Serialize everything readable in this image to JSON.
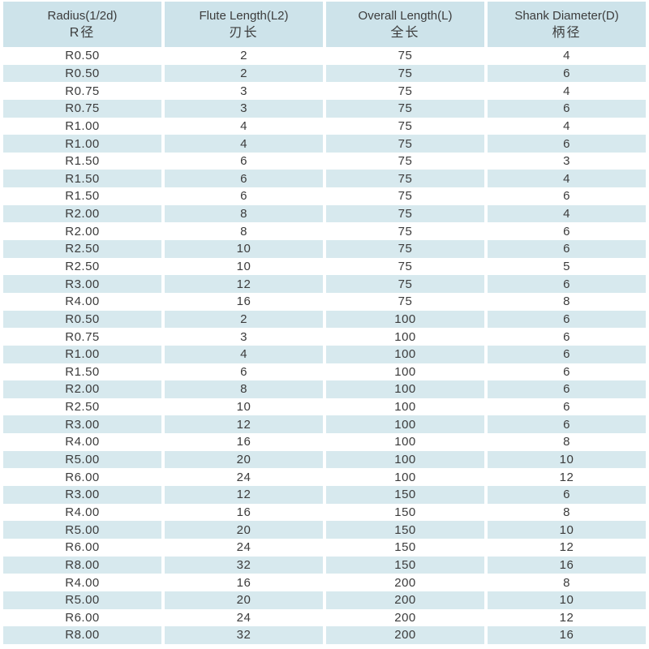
{
  "colors": {
    "page_bg": "#ffffff",
    "header_bg": "#cde3ea",
    "row_alt_bg": "#d7e9ee",
    "row_bg": "#ffffff",
    "text": "#3c3c3c"
  },
  "table": {
    "columns": [
      {
        "label_en": "Radius(1/2d)",
        "label_zh": "R径"
      },
      {
        "label_en": "Flute Length(L2)",
        "label_zh": "刃长"
      },
      {
        "label_en": "Overall Length(L)",
        "label_zh": "全长"
      },
      {
        "label_en": "Shank Diameter(D)",
        "label_zh": "柄径"
      }
    ],
    "rows": [
      [
        "R0.50",
        "2",
        "75",
        "4"
      ],
      [
        "R0.50",
        "2",
        "75",
        "6"
      ],
      [
        "R0.75",
        "3",
        "75",
        "4"
      ],
      [
        "R0.75",
        "3",
        "75",
        "6"
      ],
      [
        "R1.00",
        "4",
        "75",
        "4"
      ],
      [
        "R1.00",
        "4",
        "75",
        "6"
      ],
      [
        "R1.50",
        "6",
        "75",
        "3"
      ],
      [
        "R1.50",
        "6",
        "75",
        "4"
      ],
      [
        "R1.50",
        "6",
        "75",
        "6"
      ],
      [
        "R2.00",
        "8",
        "75",
        "4"
      ],
      [
        "R2.00",
        "8",
        "75",
        "6"
      ],
      [
        "R2.50",
        "10",
        "75",
        "6"
      ],
      [
        "R2.50",
        "10",
        "75",
        "5"
      ],
      [
        "R3.00",
        "12",
        "75",
        "6"
      ],
      [
        "R4.00",
        "16",
        "75",
        "8"
      ],
      [
        "R0.50",
        "2",
        "100",
        "6"
      ],
      [
        "R0.75",
        "3",
        "100",
        "6"
      ],
      [
        "R1.00",
        "4",
        "100",
        "6"
      ],
      [
        "R1.50",
        "6",
        "100",
        "6"
      ],
      [
        "R2.00",
        "8",
        "100",
        "6"
      ],
      [
        "R2.50",
        "10",
        "100",
        "6"
      ],
      [
        "R3.00",
        "12",
        "100",
        "6"
      ],
      [
        "R4.00",
        "16",
        "100",
        "8"
      ],
      [
        "R5.00",
        "20",
        "100",
        "10"
      ],
      [
        "R6.00",
        "24",
        "100",
        "12"
      ],
      [
        "R3.00",
        "12",
        "150",
        "6"
      ],
      [
        "R4.00",
        "16",
        "150",
        "8"
      ],
      [
        "R5.00",
        "20",
        "150",
        "10"
      ],
      [
        "R6.00",
        "24",
        "150",
        "12"
      ],
      [
        "R8.00",
        "32",
        "150",
        "16"
      ],
      [
        "R4.00",
        "16",
        "200",
        "8"
      ],
      [
        "R5.00",
        "20",
        "200",
        "10"
      ],
      [
        "R6.00",
        "24",
        "200",
        "12"
      ],
      [
        "R8.00",
        "32",
        "200",
        "16"
      ]
    ]
  }
}
